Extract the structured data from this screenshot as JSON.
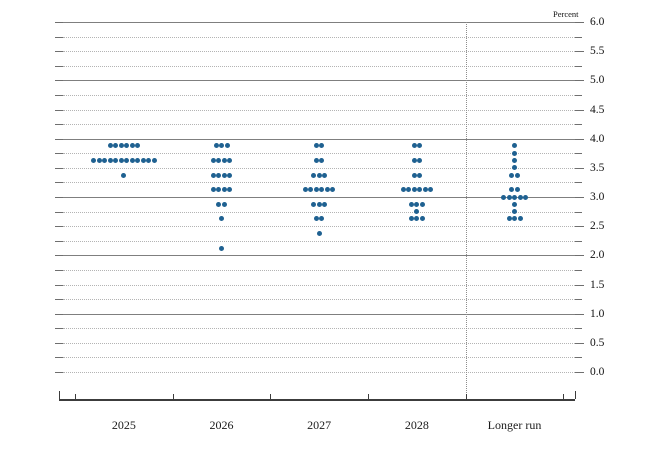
{
  "chart_data": {
    "type": "scatter",
    "variant": "fomc-dot-plot",
    "unit_label": "Percent",
    "ylim": [
      0.0,
      6.0
    ],
    "y_grid_step": 0.25,
    "y_label_step": 0.5,
    "y_tick_labels": [
      "6.0",
      "5.5",
      "5.0",
      "4.5",
      "4.0",
      "3.5",
      "3.0",
      "2.5",
      "2.0",
      "1.5",
      "1.0",
      "0.5",
      "0.0"
    ],
    "solid_gridline_values": [
      6.0,
      5.0,
      4.0,
      3.0,
      2.0,
      1.0
    ],
    "categories": [
      "2025",
      "2026",
      "2027",
      "2028",
      "Longer run"
    ],
    "separator_before_category": "Longer run",
    "series": [
      {
        "category": "2025",
        "dots": [
          {
            "value": 3.875,
            "count": 6
          },
          {
            "value": 3.625,
            "count": 12
          },
          {
            "value": 3.375,
            "count": 1
          }
        ]
      },
      {
        "category": "2026",
        "dots": [
          {
            "value": 3.875,
            "count": 3
          },
          {
            "value": 3.625,
            "count": 4
          },
          {
            "value": 3.375,
            "count": 4
          },
          {
            "value": 3.125,
            "count": 4
          },
          {
            "value": 2.875,
            "count": 2
          },
          {
            "value": 2.625,
            "count": 1
          },
          {
            "value": 2.125,
            "count": 1
          }
        ]
      },
      {
        "category": "2027",
        "dots": [
          {
            "value": 3.875,
            "count": 2
          },
          {
            "value": 3.625,
            "count": 2
          },
          {
            "value": 3.375,
            "count": 3
          },
          {
            "value": 3.125,
            "count": 6
          },
          {
            "value": 2.875,
            "count": 3
          },
          {
            "value": 2.625,
            "count": 2
          },
          {
            "value": 2.375,
            "count": 1
          }
        ]
      },
      {
        "category": "2028",
        "dots": [
          {
            "value": 3.875,
            "count": 2
          },
          {
            "value": 3.625,
            "count": 2
          },
          {
            "value": 3.375,
            "count": 2
          },
          {
            "value": 3.125,
            "count": 6
          },
          {
            "value": 2.875,
            "count": 3
          },
          {
            "value": 2.75,
            "count": 1
          },
          {
            "value": 2.625,
            "count": 3
          }
        ]
      },
      {
        "category": "Longer run",
        "dots": [
          {
            "value": 3.875,
            "count": 1
          },
          {
            "value": 3.75,
            "count": 1
          },
          {
            "value": 3.625,
            "count": 1
          },
          {
            "value": 3.5,
            "count": 1
          },
          {
            "value": 3.375,
            "count": 2
          },
          {
            "value": 3.125,
            "count": 2
          },
          {
            "value": 3.0,
            "count": 5
          },
          {
            "value": 2.875,
            "count": 1
          },
          {
            "value": 2.75,
            "count": 1
          },
          {
            "value": 2.625,
            "count": 3
          }
        ]
      }
    ],
    "colors": {
      "dot": "#1f6191",
      "solid_gridline": "#7f7f7f",
      "dotted_gridline": "#b4b4b4",
      "axis": "#3c3c3c",
      "text": "#111111"
    },
    "legend": "none",
    "grid": "on"
  }
}
